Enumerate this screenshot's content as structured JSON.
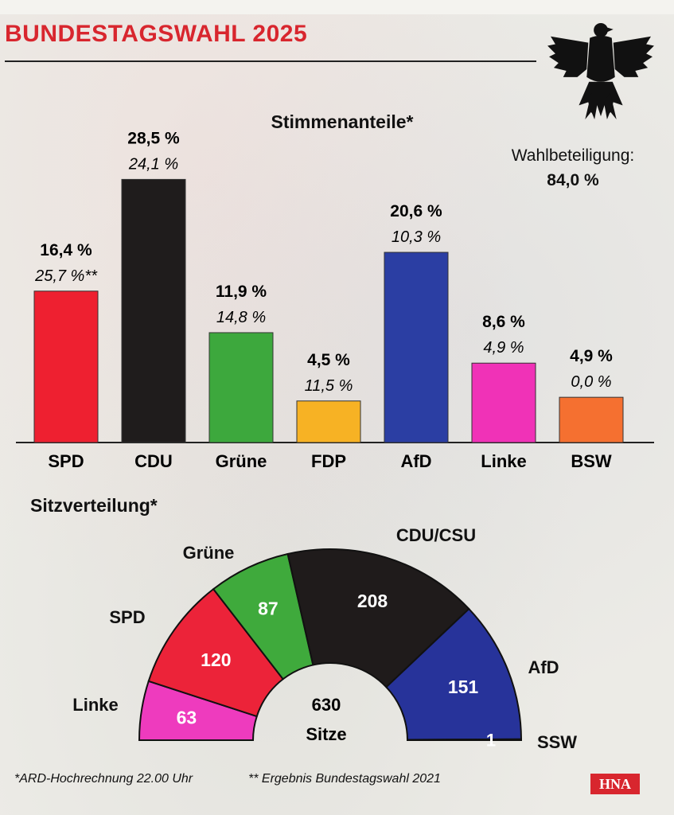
{
  "header": {
    "title": "BUNDESTAGSWAHL 2025",
    "accent_color": "#d8262e",
    "emblem": "bundestag-eagle-icon"
  },
  "turnout": {
    "label": "Wahlbeteiligung:",
    "value": "84,0 %"
  },
  "chart_data": [
    {
      "type": "bar",
      "title": "Stimmenanteile*",
      "categories": [
        "SPD",
        "CDU",
        "Grüne",
        "FDP",
        "AfD",
        "Linke",
        "BSW"
      ],
      "series": [
        {
          "values": [
            16.4,
            28.5,
            11.9,
            4.5,
            20.6,
            8.6,
            4.9
          ]
        },
        {
          "values": [
            25.7,
            24.1,
            14.8,
            11.5,
            10.3,
            4.9,
            0.0
          ]
        }
      ],
      "value_labels": [
        "16,4 %",
        "28,5 %",
        "11,9 %",
        "4,5 %",
        "20,6 %",
        "8,6 %",
        "4,9 %"
      ],
      "previous_labels": [
        "25,7 %**",
        "24,1 %",
        "14,8 %",
        "11,5 %",
        "10,3 %",
        "4,9 %",
        "0,0 %"
      ],
      "colors": [
        "#ee2030",
        "#1f1c1c",
        "#3da83d",
        "#f7b224",
        "#2b3ea3",
        "#f032b7",
        "#f57030"
      ],
      "ylim": [
        0,
        30
      ],
      "grid": false
    },
    {
      "type": "pie",
      "title": "Sitzverteilung*",
      "style": "half-donut parliament chart",
      "categories": [
        "Linke",
        "SPD",
        "Grüne",
        "CDU/CSU",
        "AfD",
        "SSW"
      ],
      "values": [
        63,
        120,
        87,
        208,
        151,
        1
      ],
      "colors": [
        "#ee3bbe",
        "#ec2339",
        "#3faa3c",
        "#1f1b1b",
        "#27339a",
        "#2d3a90"
      ],
      "center_value": "630",
      "center_label": "Sitze"
    }
  ],
  "footnotes": {
    "projection": "*ARD-Hochrechnung 22.00 Uhr",
    "previous": "** Ergebnis Bundestagswahl 2021"
  },
  "publisher": "HNA"
}
